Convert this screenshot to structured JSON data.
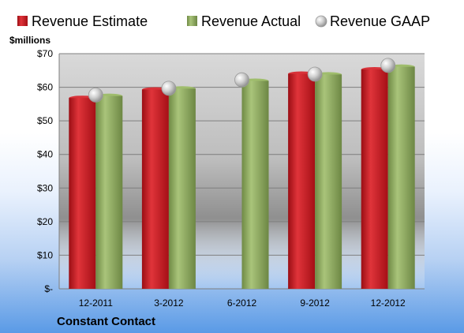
{
  "chart_data": {
    "type": "bar",
    "unit_label": "$millions",
    "categories": [
      "12-2011",
      "3-2012",
      "6-2012",
      "9-2012",
      "12-2012"
    ],
    "series": [
      {
        "name": "Revenue Estimate",
        "kind": "bar",
        "color": "#c0141c",
        "values": [
          56.8,
          59.3,
          null,
          64.0,
          65.3
        ]
      },
      {
        "name": "Revenue Actual",
        "kind": "bar",
        "color": "#8aa55a",
        "values": [
          57.4,
          59.6,
          61.9,
          63.8,
          66.1
        ]
      },
      {
        "name": "Revenue GAAP",
        "kind": "marker",
        "color": "#c8c8c8",
        "values": [
          57.7,
          59.7,
          62.2,
          63.9,
          66.5
        ]
      }
    ],
    "ylim": [
      0,
      70
    ],
    "yticks": [
      0,
      10,
      20,
      30,
      40,
      50,
      60,
      70
    ],
    "ytick_labels": [
      "$-",
      "$10",
      "$20",
      "$30",
      "$40",
      "$50",
      "$60",
      "$70"
    ],
    "grid": true,
    "legend_position": "top",
    "company": "Constant Contact"
  }
}
